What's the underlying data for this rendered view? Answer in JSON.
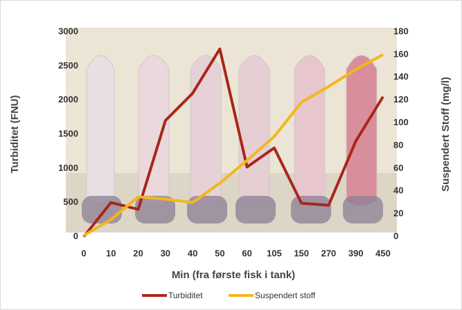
{
  "chart_data": {
    "type": "line",
    "categories": [
      "0",
      "10",
      "20",
      "30",
      "40",
      "50",
      "60",
      "105",
      "150",
      "270",
      "390",
      "450"
    ],
    "series": [
      {
        "name": "Turbiditet",
        "color": "#a8261a",
        "values": [
          0,
          500,
          400,
          1700,
          2100,
          2750,
          1020,
          1300,
          490,
          460,
          1400,
          2050
        ]
      },
      {
        "name": "Suspendert stoff",
        "color": "#f2b71c",
        "axis": "y2",
        "values": [
          1,
          15,
          35,
          33,
          30,
          47,
          67,
          88,
          118,
          132,
          147,
          160
        ]
      }
    ],
    "ylim": [
      0,
      3000
    ],
    "yticks": [
      0,
      500,
      1000,
      1500,
      2000,
      2500,
      3000
    ],
    "y2lim": [
      0,
      180
    ],
    "y2ticks": [
      0,
      20,
      40,
      60,
      80,
      100,
      120,
      140,
      160,
      180
    ],
    "ylabel": "Turbiditet (FNU)",
    "y2label": "Suspendert Stoff (mg/l)",
    "xlabel": "Min (fra første fisk i tank)",
    "legend": "bottom",
    "grid": false
  }
}
